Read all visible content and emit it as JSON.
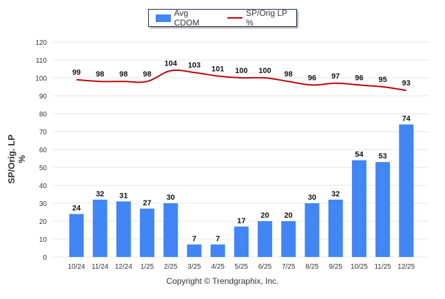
{
  "legend": {
    "bar_label": "Avg CDOM",
    "line_label": "SP/Orig LP %"
  },
  "footer": {
    "copyright": "Copyright © Trendgraphix, Inc."
  },
  "colors": {
    "bar": "#4285f4",
    "line": "#c00000",
    "grid": "#e6e6e6",
    "axis_text": "#333333"
  },
  "chart_data": {
    "type": "bar",
    "title": "",
    "xlabel": "",
    "ylabel": "SP/Orig. LP %",
    "ylim": [
      0,
      120
    ],
    "yticks": [
      0,
      10,
      20,
      30,
      40,
      50,
      60,
      70,
      80,
      90,
      100,
      110,
      120
    ],
    "grid": true,
    "legend_position": "top-center",
    "categories": [
      "10/24",
      "11/24",
      "12/24",
      "1/25",
      "2/25",
      "3/25",
      "4/25",
      "5/25",
      "6/25",
      "7/25",
      "8/25",
      "9/25",
      "10/25",
      "11/25",
      "12/25"
    ],
    "series": [
      {
        "name": "Avg CDOM",
        "type": "bar",
        "values": [
          24,
          32,
          31,
          27,
          30,
          7,
          7,
          17,
          20,
          20,
          30,
          32,
          54,
          53,
          74
        ]
      },
      {
        "name": "SP/Orig LP %",
        "type": "line",
        "values": [
          99,
          98,
          98,
          98,
          104,
          103,
          101,
          100,
          100,
          98,
          96,
          97,
          96,
          95,
          93
        ]
      }
    ]
  }
}
